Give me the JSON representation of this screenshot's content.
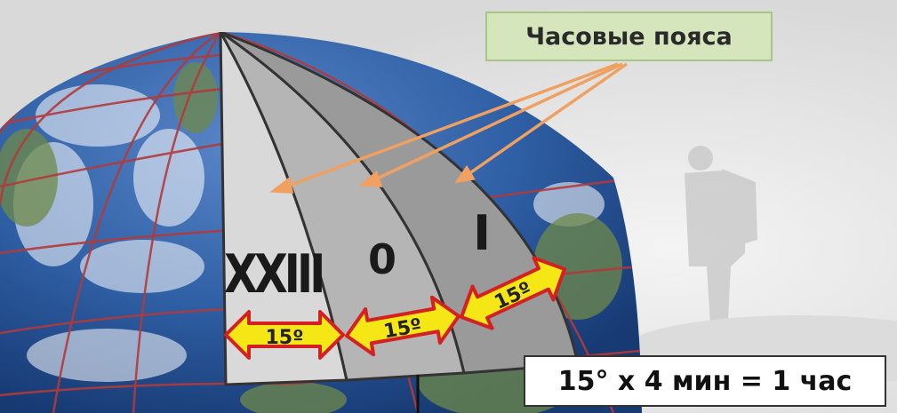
{
  "title": "Часовые пояса",
  "formula": "15° х 4 мин = 1 час",
  "zones": [
    {
      "label": "XXIII",
      "width_label": "15º"
    },
    {
      "label": "0",
      "width_label": "15º"
    },
    {
      "label": "I",
      "width_label": "15º"
    }
  ],
  "colors": {
    "zone_xxiii": "#d9d9d9",
    "zone_0": "#b5b5b5",
    "zone_i": "#9a9a9a",
    "arrow_fill": "#f5e616",
    "arrow_stroke": "#d42020",
    "pointer": "#f0a060",
    "grid": "#b23a3a",
    "title_bg": "#d5e6bd"
  }
}
